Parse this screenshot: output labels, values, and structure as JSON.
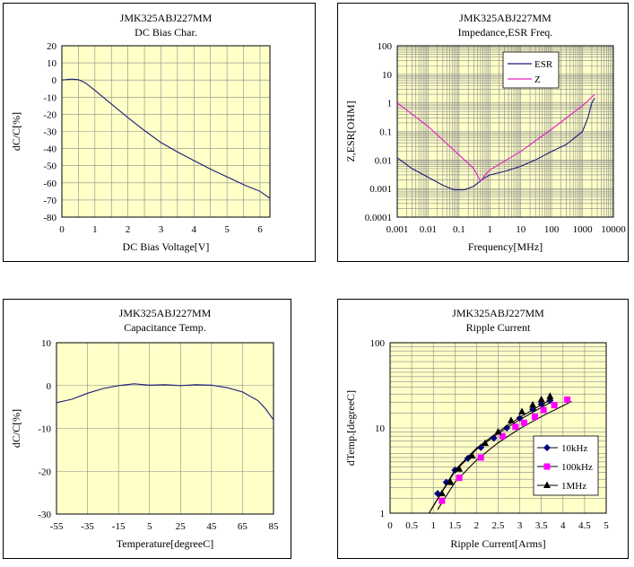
{
  "chart_data": [
    {
      "type": "line",
      "title": "JMK325ABJ227MM",
      "subtitle": "DC Bias Char.",
      "xlabel": "DC Bias Voltage[V]",
      "ylabel": "dC/C[%]",
      "xlim": [
        0,
        6.3
      ],
      "ylim": [
        -80,
        20
      ],
      "xticks": [
        0,
        1,
        2,
        3,
        4,
        5,
        6
      ],
      "xtick_labels": [
        "0",
        "1",
        "2",
        "3",
        "4",
        "5",
        "6"
      ],
      "yticks": [
        20,
        10,
        0,
        -10,
        -20,
        -30,
        -40,
        -50,
        -60,
        -70,
        -80
      ],
      "ytick_labels": [
        "20",
        "10",
        "0",
        "-10",
        "-20",
        "-30",
        "-40",
        "-50",
        "-60",
        "-70",
        "-80"
      ],
      "grid": true,
      "series": [
        {
          "name": "",
          "color": "#1a1a7a",
          "x": [
            0,
            0.3,
            0.5,
            0.7,
            1.0,
            1.5,
            2.0,
            2.5,
            3.0,
            3.5,
            4.0,
            4.5,
            5.0,
            5.5,
            6.0,
            6.3
          ],
          "y": [
            0,
            0.5,
            0.2,
            -1.5,
            -6,
            -14,
            -22,
            -29.5,
            -36.5,
            -42,
            -47,
            -52,
            -56.5,
            -61,
            -65,
            -69
          ]
        }
      ]
    },
    {
      "type": "line",
      "title": "JMK325ABJ227MM",
      "subtitle": "Impedance,ESR  Freq.",
      "xlabel": "Frequency[MHz]",
      "ylabel": "Z,ESR[OHM]",
      "xscale": "log",
      "yscale": "log",
      "xlim": [
        0.001,
        10000
      ],
      "ylim": [
        0.0001,
        100
      ],
      "xtick_labels": [
        "0.001",
        "0.01",
        "0.1",
        "1",
        "10",
        "100",
        "1000",
        "10000"
      ],
      "ytick_labels": [
        "100",
        "10",
        "1",
        "0.1",
        "0.01",
        "0.001",
        "0.0001"
      ],
      "grid": true,
      "legend_position": "top-right",
      "series": [
        {
          "name": "ESR",
          "color": "#1a1a7a",
          "x": [
            0.001,
            0.003,
            0.01,
            0.03,
            0.07,
            0.15,
            0.3,
            0.6,
            1,
            3,
            10,
            30,
            100,
            300,
            1000,
            1500,
            2000,
            2500
          ],
          "y": [
            0.012,
            0.005,
            0.0025,
            0.0013,
            0.0009,
            0.0009,
            0.0012,
            0.0022,
            0.003,
            0.004,
            0.006,
            0.01,
            0.02,
            0.035,
            0.1,
            0.3,
            1.0,
            1.5
          ]
        },
        {
          "name": "Z",
          "color": "#e020c0",
          "x": [
            0.001,
            0.01,
            0.1,
            0.3,
            0.5,
            0.7,
            1,
            10,
            100,
            1000,
            2500
          ],
          "y": [
            1,
            0.15,
            0.015,
            0.005,
            0.0018,
            0.003,
            0.0045,
            0.02,
            0.12,
            0.8,
            2.0
          ]
        }
      ]
    },
    {
      "type": "line",
      "title": "JMK325ABJ227MM",
      "subtitle": "Capacitance  Temp.",
      "xlabel": "Temperature[degreeC]",
      "ylabel": "dC/C[%]",
      "xlim": [
        -55,
        85
      ],
      "ylim": [
        -30,
        10
      ],
      "xtick_labels": [
        "-55",
        "-35",
        "-15",
        "5",
        "25",
        "45",
        "65",
        "85"
      ],
      "ytick_labels": [
        "10",
        "0",
        "-10",
        "-20",
        "-30"
      ],
      "grid": true,
      "series": [
        {
          "name": "",
          "color": "#1a1a7a",
          "x": [
            -55,
            -45,
            -35,
            -25,
            -15,
            -5,
            5,
            15,
            25,
            35,
            45,
            55,
            65,
            75,
            80,
            85
          ],
          "y": [
            -4,
            -3.2,
            -1.8,
            -0.7,
            0,
            0.4,
            0.1,
            0.2,
            0,
            0.2,
            0.1,
            -0.5,
            -1.5,
            -3.5,
            -5.5,
            -8
          ]
        }
      ]
    },
    {
      "type": "line",
      "title": "JMK325ABJ227MM",
      "subtitle": "Ripple Current",
      "xlabel": "Ripple Current[Arms]",
      "ylabel": "dTemp.[degreeC]",
      "yscale": "log",
      "xlim": [
        0,
        5
      ],
      "ylim": [
        1,
        100
      ],
      "xticks": [
        0,
        0.5,
        1,
        1.5,
        2,
        2.5,
        3,
        3.5,
        4,
        4.5,
        5
      ],
      "xtick_labels": [
        "0",
        "0.5",
        "1",
        "1.5",
        "2",
        "2.5",
        "3",
        "3.5",
        "4",
        "4.5",
        "5"
      ],
      "ytick_labels": [
        "100",
        "10",
        "1"
      ],
      "grid": true,
      "legend_position": "bottom-right",
      "series": [
        {
          "name": "10kHz",
          "color": "#000080",
          "marker": "diamond",
          "x": [
            1.1,
            1.3,
            1.5,
            1.8,
            2.1,
            2.4,
            2.7,
            3.0,
            3.3,
            3.5,
            3.7
          ],
          "y": [
            1.7,
            2.3,
            3.2,
            4.4,
            5.9,
            7.6,
            10,
            13,
            16.5,
            19,
            21
          ],
          "fit": {
            "x": [
              0.95,
              1.5,
              2.0,
              2.5,
              3.0,
              3.5,
              3.75
            ],
            "y": [
              1.1,
              3.1,
              5.6,
              8.6,
              12.5,
              17.4,
              20.5
            ]
          }
        },
        {
          "name": "100kHz",
          "color": "#ff00ff",
          "marker": "square",
          "x": [
            1.2,
            1.6,
            2.1,
            2.6,
            2.9,
            3.1,
            3.35,
            3.55,
            3.8,
            4.1
          ],
          "y": [
            1.4,
            2.6,
            4.5,
            8,
            10.3,
            11.5,
            13.5,
            16.2,
            18.5,
            21.5
          ],
          "fit": {
            "x": [
              1.1,
              1.5,
              2.0,
              2.5,
              3.0,
              3.5,
              4.0,
              4.2
            ],
            "y": [
              1.1,
              2.3,
              4.2,
              6.7,
              9.8,
              13.6,
              18.2,
              20.5
            ]
          }
        },
        {
          "name": "1MHz",
          "color": "#000000",
          "marker": "triangle",
          "x": [
            1.2,
            1.4,
            1.6,
            1.9,
            2.2,
            2.5,
            2.8,
            3.05,
            3.3,
            3.5,
            3.7
          ],
          "y": [
            1.7,
            2.3,
            3.3,
            4.7,
            6.6,
            9.0,
            12.2,
            15.5,
            18.6,
            21.5,
            23.5
          ],
          "fit": {
            "x": [
              0.9,
              1.5,
              2.0,
              2.5,
              3.0,
              3.5,
              3.75
            ],
            "y": [
              1.0,
              3.2,
              5.8,
              9.0,
              13.3,
              18.7,
              22.0
            ]
          }
        }
      ]
    }
  ]
}
